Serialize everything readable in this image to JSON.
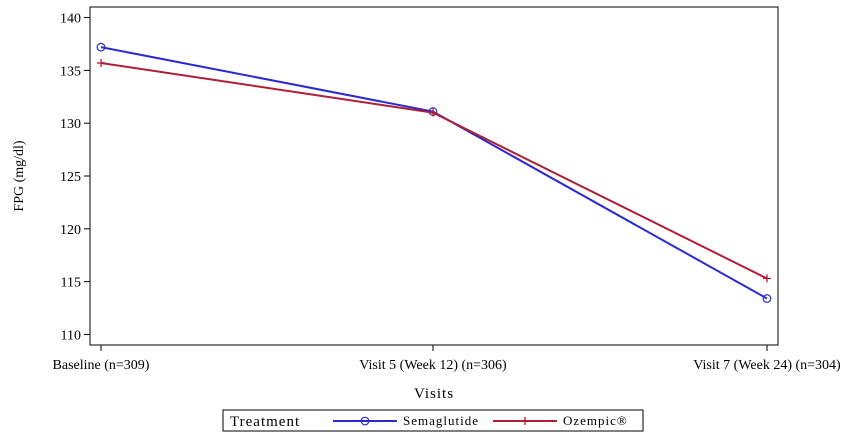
{
  "chart_data": {
    "type": "line",
    "title": "",
    "xlabel": "Visits",
    "ylabel": "FPG (mg/dl)",
    "categories": [
      "Baseline (n=309)",
      "Visit 5 (Week 12) (n=306)",
      "Visit 7 (Week 24) (n=304)"
    ],
    "ylim": [
      109,
      141
    ],
    "yticks": [
      110,
      115,
      120,
      125,
      130,
      135,
      140
    ],
    "grid": false,
    "legend": {
      "title": "Treatment",
      "placement": "bottom"
    },
    "series": [
      {
        "name": "Semaglutide",
        "values": [
          137.2,
          131.1,
          113.4
        ],
        "color": "#2a2ad0",
        "marker": "circle"
      },
      {
        "name": "Ozempic®",
        "values": [
          135.7,
          131.0,
          115.3
        ],
        "color": "#b01e35",
        "marker": "plus"
      }
    ]
  }
}
